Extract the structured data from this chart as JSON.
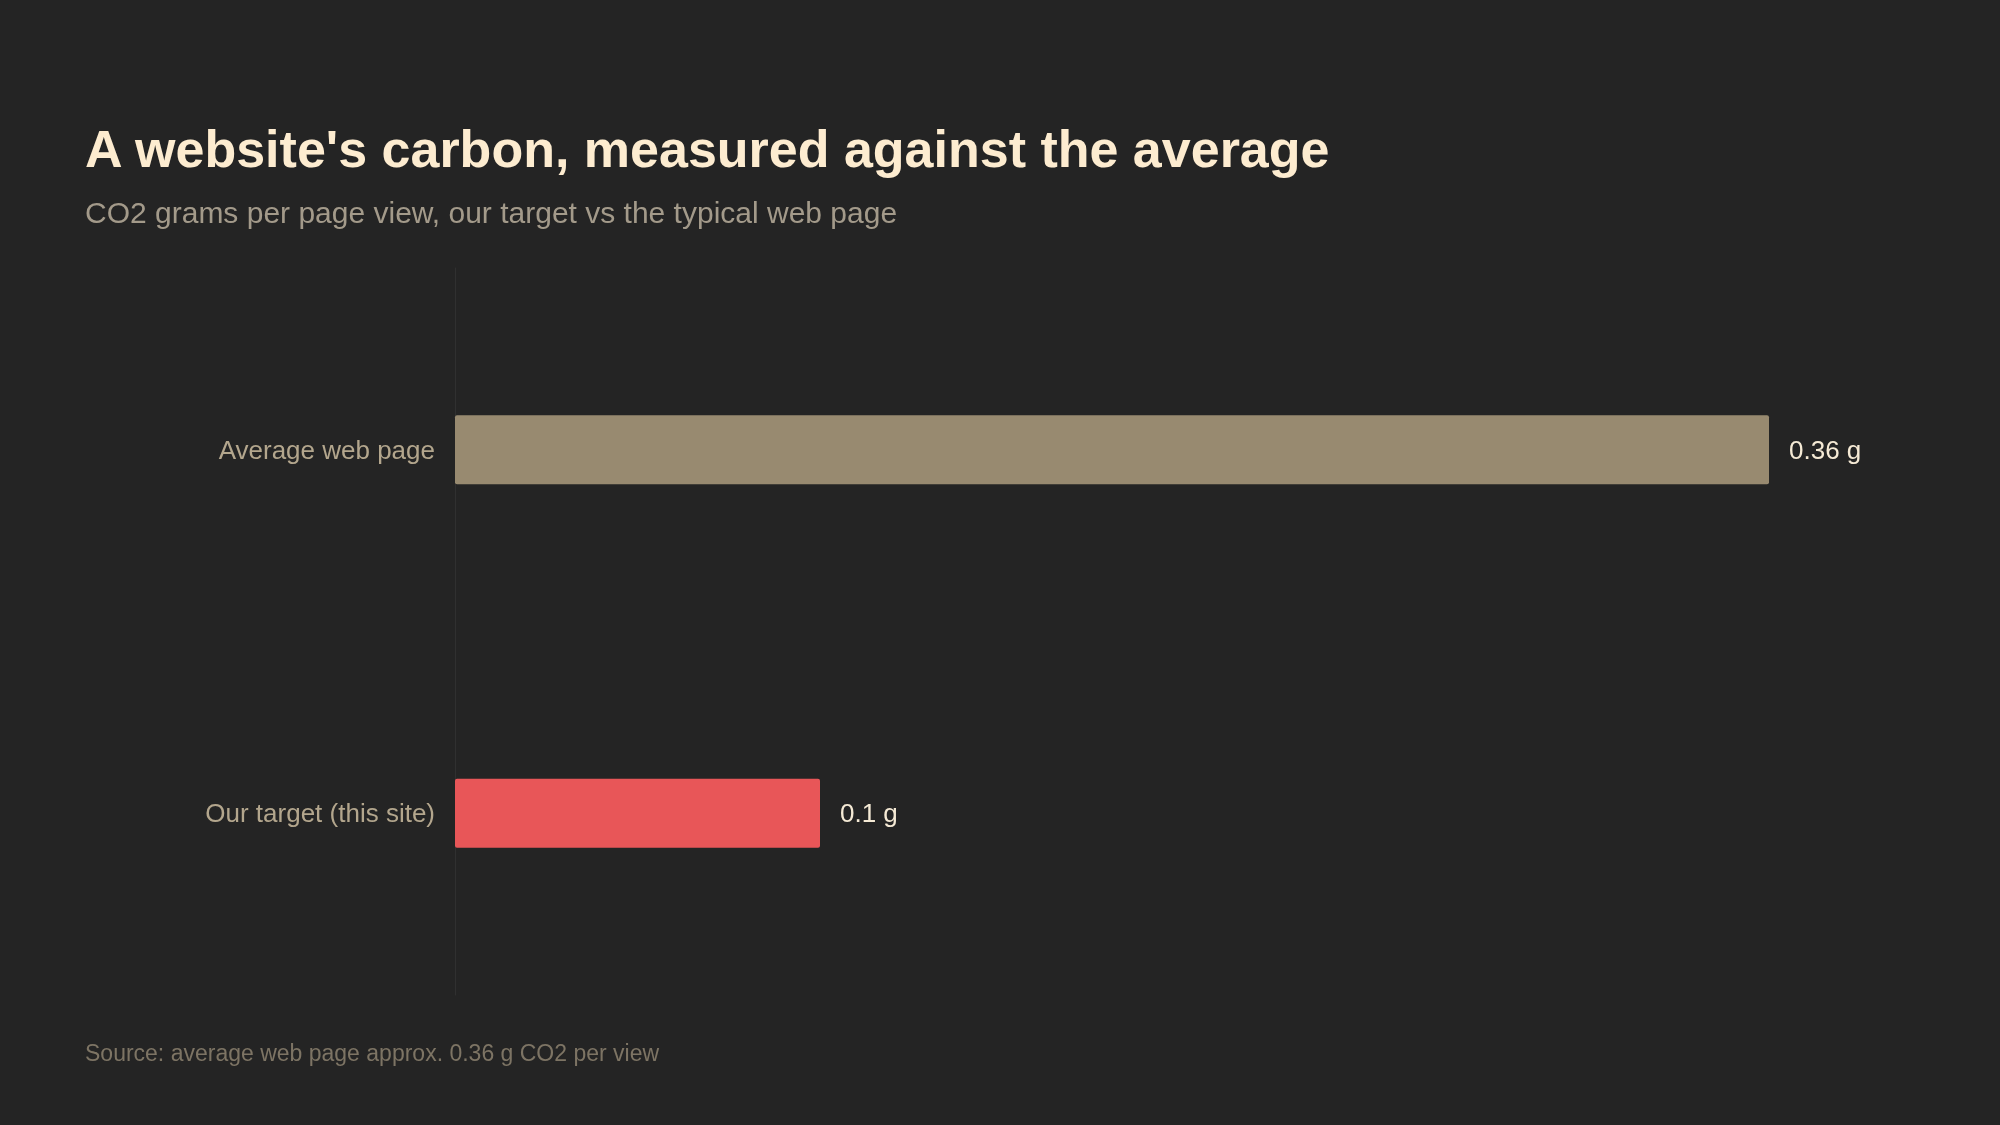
{
  "chart_data": {
    "type": "bar",
    "orientation": "horizontal",
    "title": "A website's carbon, measured against the average",
    "subtitle": "CO2 grams per page view, our target vs the typical web page",
    "annotations": [
      "Source: average web page approx. 0.36 g CO2 per view"
    ],
    "categories": [
      "Average web page",
      "Our target (this site)"
    ],
    "values": [
      0.36,
      0.1
    ],
    "colors": [
      "#988a70",
      "#e85658"
    ],
    "value_labels": [
      "0.36 g",
      "0.1 g"
    ],
    "xlim": [
      0,
      0.36
    ],
    "tick_labels": "y"
  }
}
